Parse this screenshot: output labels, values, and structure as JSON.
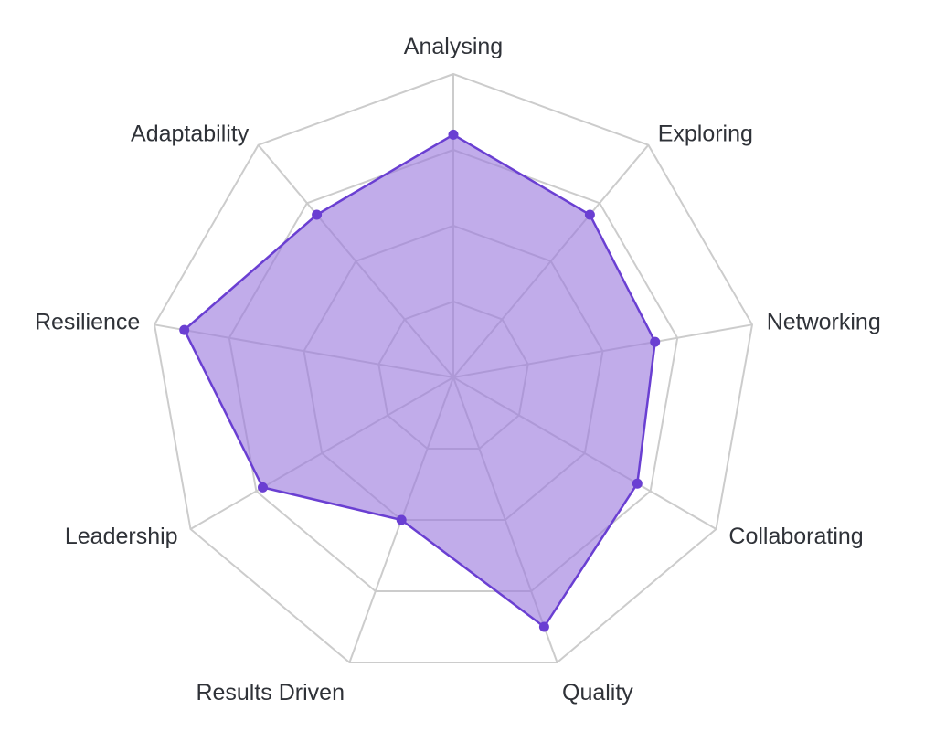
{
  "chart_data": {
    "type": "radar",
    "categories": [
      "Analysing",
      "Exploring",
      "Networking",
      "Collaborating",
      "Quality",
      "Results Driven",
      "Leadership",
      "Resilience",
      "Adaptability"
    ],
    "series": [
      {
        "values": [
          3.2,
          2.8,
          2.7,
          2.8,
          3.5,
          2.0,
          2.9,
          3.6,
          2.8
        ]
      }
    ],
    "rlim": [
      0,
      4
    ],
    "grid_rings": 4,
    "colors": {
      "fill": "#9b79dd",
      "line": "#6a3fd2",
      "grid": "#cccccc"
    }
  }
}
